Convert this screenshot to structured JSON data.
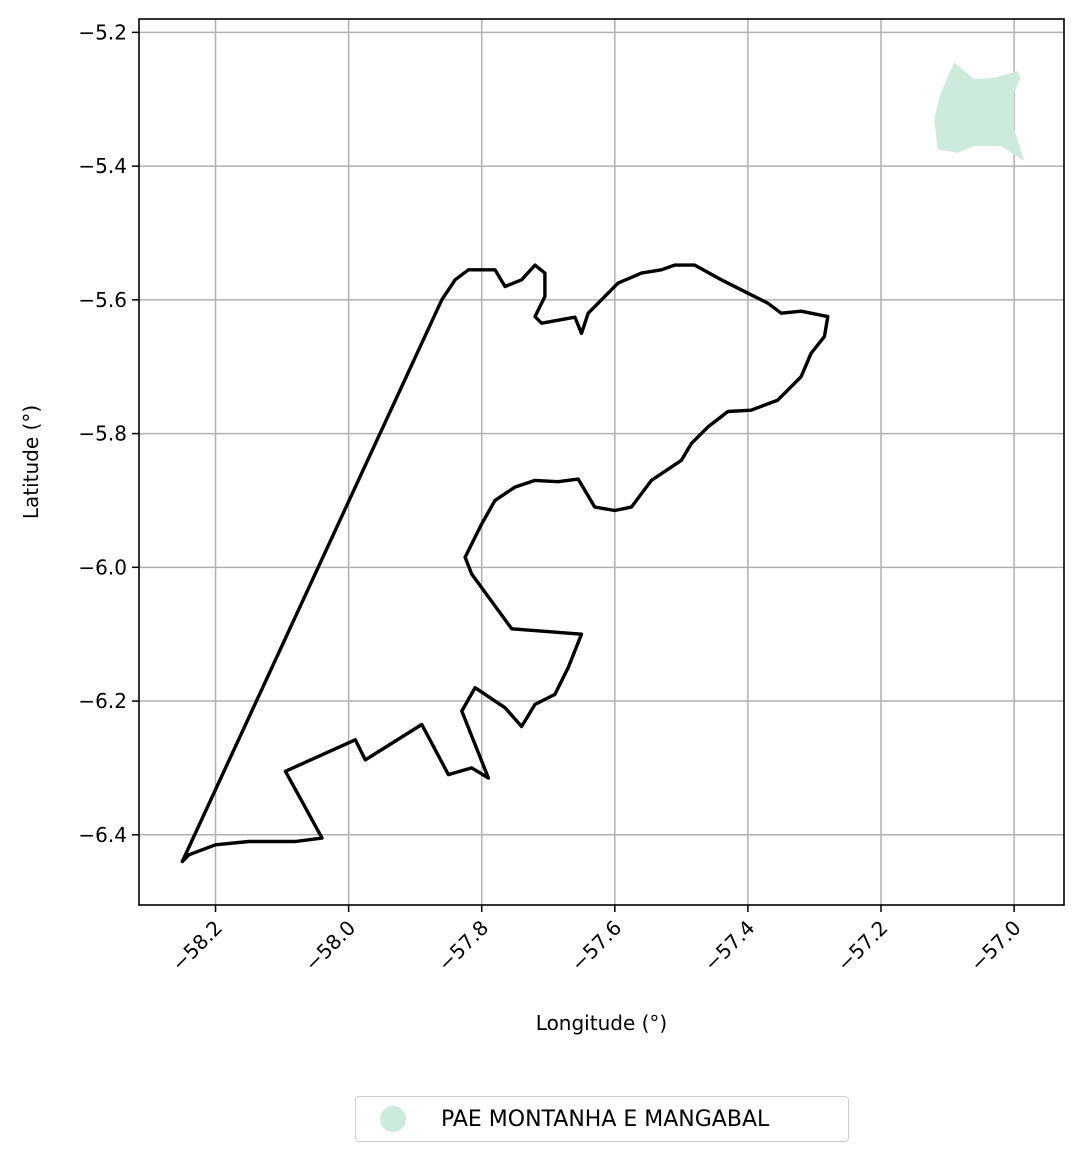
{
  "chart_data": {
    "type": "map",
    "xlabel": "Longitude (°)",
    "ylabel": "Latitude (°)",
    "xlim": [
      -58.315,
      -56.925
    ],
    "ylim": [
      -6.505,
      -5.18
    ],
    "xticks": [
      -58.2,
      -58.0,
      -57.8,
      -57.6,
      -57.4,
      -57.2,
      -57.0
    ],
    "xtick_labels": [
      "−58.2",
      "−58.0",
      "−57.8",
      "−57.6",
      "−57.4",
      "−57.2",
      "−57.0"
    ],
    "yticks": [
      -5.2,
      -5.4,
      -5.6,
      -5.8,
      -6.0,
      -6.2,
      -6.4
    ],
    "ytick_labels": [
      "−5.2",
      "−5.4",
      "−5.6",
      "−5.8",
      "−6.0",
      "−6.2",
      "−6.4"
    ],
    "grid": true,
    "legend_placement": "bottom-center, below plot",
    "layers": [
      {
        "name": "boundary",
        "style": "outline",
        "color": "#000000",
        "coordinates": [
          [
            -58.25,
            -6.44
          ],
          [
            -57.86,
            -5.6
          ],
          [
            -57.84,
            -5.57
          ],
          [
            -57.82,
            -5.555
          ],
          [
            -57.78,
            -5.555
          ],
          [
            -57.765,
            -5.58
          ],
          [
            -57.74,
            -5.57
          ],
          [
            -57.72,
            -5.548
          ],
          [
            -57.705,
            -5.56
          ],
          [
            -57.705,
            -5.595
          ],
          [
            -57.72,
            -5.625
          ],
          [
            -57.71,
            -5.635
          ],
          [
            -57.66,
            -5.626
          ],
          [
            -57.65,
            -5.65
          ],
          [
            -57.64,
            -5.62
          ],
          [
            -57.62,
            -5.6
          ],
          [
            -57.595,
            -5.575
          ],
          [
            -57.56,
            -5.56
          ],
          [
            -57.53,
            -5.555
          ],
          [
            -57.51,
            -5.548
          ],
          [
            -57.48,
            -5.548
          ],
          [
            -57.44,
            -5.57
          ],
          [
            -57.4,
            -5.59
          ],
          [
            -57.37,
            -5.605
          ],
          [
            -57.35,
            -5.62
          ],
          [
            -57.32,
            -5.617
          ],
          [
            -57.28,
            -5.625
          ],
          [
            -57.285,
            -5.655
          ],
          [
            -57.305,
            -5.68
          ],
          [
            -57.32,
            -5.715
          ],
          [
            -57.355,
            -5.75
          ],
          [
            -57.395,
            -5.765
          ],
          [
            -57.43,
            -5.767
          ],
          [
            -57.46,
            -5.79
          ],
          [
            -57.485,
            -5.815
          ],
          [
            -57.5,
            -5.84
          ],
          [
            -57.545,
            -5.87
          ],
          [
            -57.575,
            -5.91
          ],
          [
            -57.6,
            -5.915
          ],
          [
            -57.63,
            -5.91
          ],
          [
            -57.655,
            -5.868
          ],
          [
            -57.685,
            -5.872
          ],
          [
            -57.72,
            -5.87
          ],
          [
            -57.75,
            -5.88
          ],
          [
            -57.78,
            -5.9
          ],
          [
            -57.8,
            -5.935
          ],
          [
            -57.825,
            -5.985
          ],
          [
            -57.815,
            -6.01
          ],
          [
            -57.755,
            -6.092
          ],
          [
            -57.65,
            -6.1
          ],
          [
            -57.67,
            -6.15
          ],
          [
            -57.69,
            -6.19
          ],
          [
            -57.72,
            -6.205
          ],
          [
            -57.74,
            -6.238
          ],
          [
            -57.765,
            -6.21
          ],
          [
            -57.81,
            -6.18
          ],
          [
            -57.83,
            -6.215
          ],
          [
            -57.79,
            -6.315
          ],
          [
            -57.815,
            -6.3
          ],
          [
            -57.85,
            -6.31
          ],
          [
            -57.89,
            -6.235
          ],
          [
            -57.975,
            -6.288
          ],
          [
            -57.99,
            -6.258
          ],
          [
            -58.095,
            -6.305
          ],
          [
            -58.07,
            -6.35
          ],
          [
            -58.04,
            -6.405
          ],
          [
            -58.08,
            -6.41
          ],
          [
            -58.15,
            -6.41
          ],
          [
            -58.2,
            -6.415
          ],
          [
            -58.24,
            -6.43
          ],
          [
            -58.25,
            -6.44
          ]
        ]
      },
      {
        "name": "PAE MONTANHA E MANGABAL",
        "style": "filled",
        "color": "#cdebdd",
        "coordinates": [
          [
            -57.09,
            -5.245
          ],
          [
            -57.06,
            -5.27
          ],
          [
            -57.03,
            -5.268
          ],
          [
            -56.995,
            -5.258
          ],
          [
            -56.99,
            -5.268
          ],
          [
            -57.0,
            -5.29
          ],
          [
            -57.0,
            -5.345
          ],
          [
            -56.985,
            -5.392
          ],
          [
            -57.02,
            -5.37
          ],
          [
            -57.06,
            -5.37
          ],
          [
            -57.085,
            -5.38
          ],
          [
            -57.115,
            -5.375
          ],
          [
            -57.12,
            -5.33
          ],
          [
            -57.11,
            -5.29
          ]
        ]
      }
    ]
  },
  "legend": {
    "label": "PAE MONTANHA E MANGABAL",
    "swatch_color": "#cdebdd"
  }
}
